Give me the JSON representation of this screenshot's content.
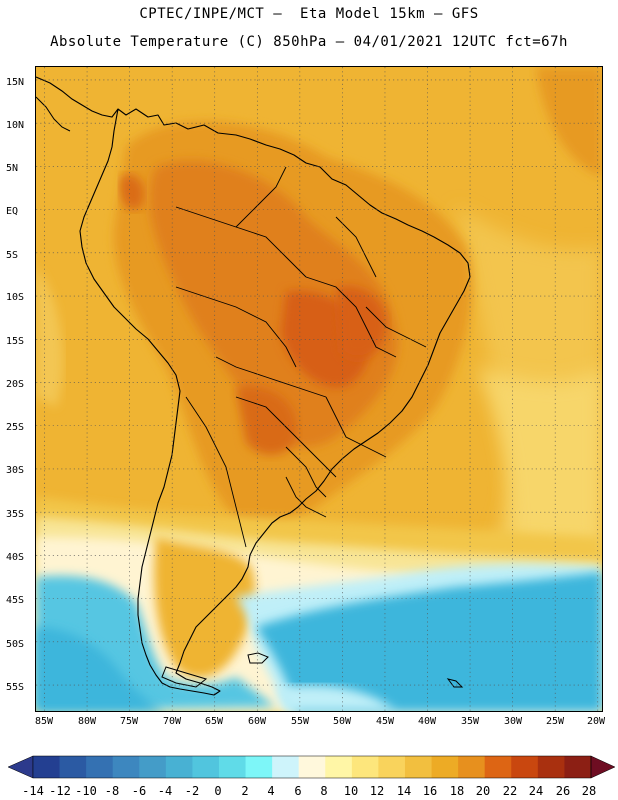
{
  "header": {
    "line1": "CPTEC/INPE/MCT –  Eta Model 15km – GFS",
    "line2": "Absolute Temperature (C) 850hPa – 04/01/2021 12UTC fct=67h"
  },
  "map": {
    "lat_labels": [
      "15N",
      "10N",
      "5N",
      "EQ",
      "5S",
      "10S",
      "15S",
      "20S",
      "25S",
      "30S",
      "35S",
      "40S",
      "45S",
      "50S",
      "55S"
    ],
    "lon_labels": [
      "85W",
      "80W",
      "75W",
      "70W",
      "65W",
      "60W",
      "55W",
      "50W",
      "45W",
      "40W",
      "35W",
      "30W",
      "25W",
      "20W"
    ],
    "lat_range": [
      -58,
      16.5
    ],
    "lon_range": [
      -86,
      -19.5
    ],
    "region": "South America"
  },
  "colorbar": {
    "labels": [
      "-14",
      "-12",
      "-10",
      "-8",
      "-6",
      "-4",
      "-2",
      "0",
      "2",
      "4",
      "6",
      "8",
      "10",
      "12",
      "14",
      "16",
      "18",
      "20",
      "22",
      "24",
      "26",
      "28"
    ],
    "under_color": "#2c3a8c",
    "over_color": "#6e0d22",
    "colors": [
      "#233f91",
      "#2b5aa3",
      "#3471b2",
      "#3d87bf",
      "#449cc8",
      "#48b1d3",
      "#51c5de",
      "#60dbe8",
      "#7df6f8",
      "#cef4fb",
      "#fff8dc",
      "#fff6a6",
      "#fde67c",
      "#f9d35c",
      "#f2bf3f",
      "#edab25",
      "#e7901e",
      "#dd6514",
      "#c9470f",
      "#a9300f",
      "#8c1f14"
    ]
  },
  "palette": {
    "ocean_cold": "#3cb6dc",
    "ocean_cool": "#56c6e2",
    "light_cyan": "#bfeff8",
    "cream": "#fff7dc",
    "pale_yellow": "#f8e596",
    "light_orange": "#f2c64a",
    "orange": "#eeaf22",
    "dark_orange": "#e79a22",
    "deep_orange": "#df7a18",
    "hot": "#d55f10"
  }
}
